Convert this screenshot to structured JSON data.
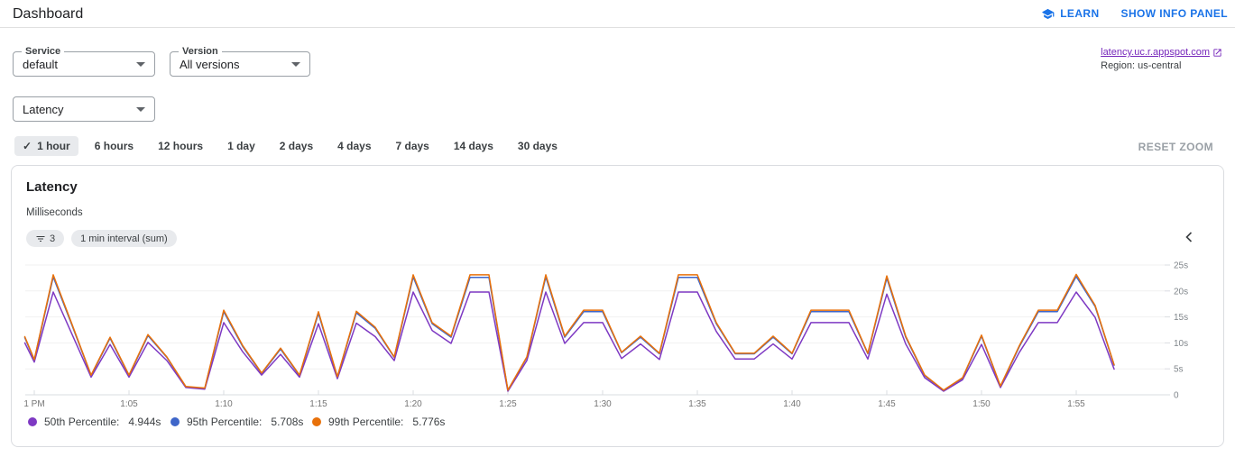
{
  "header": {
    "title": "Dashboard",
    "learn_label": "LEARN",
    "show_info_panel_label": "SHOW INFO PANEL"
  },
  "filters": {
    "service_label": "Service",
    "service_value": "default",
    "version_label": "Version",
    "version_value": "All versions",
    "metric_value": "Latency",
    "app_link_text": "latency.uc.r.appspot.com",
    "region_text": "Region: us-central"
  },
  "time_bar": {
    "options": [
      "1 hour",
      "6 hours",
      "12 hours",
      "1 day",
      "2 days",
      "4 days",
      "7 days",
      "14 days",
      "30 days"
    ],
    "selected": "1 hour",
    "check_glyph": "✓",
    "reset_zoom_label": "RESET ZOOM"
  },
  "chart_card": {
    "title": "Latency",
    "unit": "Milliseconds",
    "filter_chip_count": "3",
    "interval_chip_label": "1 min interval (sum)"
  },
  "chart_data": {
    "type": "line",
    "title": "Latency",
    "ylabel": "Milliseconds",
    "ylim": [
      0,
      25
    ],
    "grid": "horizontal",
    "legend_position": "bottom",
    "y_ticks": [
      0,
      5,
      10,
      15,
      20,
      25
    ],
    "y_tick_labels": [
      "0",
      "5s",
      "10s",
      "15s",
      "20s",
      "25s"
    ],
    "x_tick_minutes": [
      0,
      5,
      10,
      15,
      20,
      25,
      30,
      35,
      40,
      45,
      50,
      55
    ],
    "x_tick_labels": [
      "1 PM",
      "1:05",
      "1:10",
      "1:15",
      "1:20",
      "1:25",
      "1:30",
      "1:35",
      "1:40",
      "1:45",
      "1:50",
      "1:55"
    ],
    "x_minutes": [
      -0.5,
      0,
      1,
      2,
      3,
      4,
      5,
      6,
      7,
      8,
      9,
      10,
      11,
      12,
      13,
      14,
      15,
      16,
      17,
      18,
      19,
      20,
      21,
      22,
      23,
      24,
      25,
      26,
      27,
      28,
      29,
      30,
      31,
      32,
      33,
      34,
      35,
      36,
      37,
      38,
      39,
      40,
      41,
      42,
      43,
      44,
      45,
      46,
      47,
      48,
      49,
      50,
      51,
      52,
      53,
      54,
      55,
      56,
      57
    ],
    "series": [
      {
        "name": "50th Percentile",
        "latest": "4.944s",
        "color": "#7e39c3",
        "values": [
          10.0,
          6.3,
          19.8,
          11.6,
          3.4,
          9.7,
          3.4,
          10.1,
          6.6,
          1.4,
          1.1,
          13.9,
          8.3,
          3.8,
          7.8,
          3.4,
          13.7,
          3.1,
          13.8,
          11.2,
          6.6,
          19.8,
          12.4,
          9.9,
          19.8,
          19.8,
          0.7,
          6.6,
          19.8,
          9.9,
          13.9,
          13.9,
          7.0,
          9.8,
          6.8,
          19.8,
          19.8,
          12.2,
          6.9,
          6.9,
          9.8,
          6.9,
          13.9,
          13.9,
          13.9,
          6.9,
          19.4,
          9.8,
          3.3,
          0.7,
          2.9,
          9.7,
          1.4,
          8.2,
          13.9,
          13.9,
          19.8,
          14.9,
          4.944
        ]
      },
      {
        "name": "95th Percentile",
        "latest": "5.708s",
        "color": "#3f66c9",
        "values": [
          11.0,
          6.7,
          22.7,
          13.3,
          3.7,
          10.9,
          3.7,
          11.4,
          7.2,
          1.5,
          1.2,
          16.0,
          9.3,
          4.1,
          8.8,
          3.7,
          15.7,
          3.4,
          15.8,
          12.8,
          7.2,
          22.7,
          13.7,
          11.1,
          22.6,
          22.6,
          0.85,
          7.2,
          22.7,
          11.1,
          16.0,
          16.0,
          8.1,
          11.1,
          7.9,
          22.6,
          22.6,
          13.7,
          7.9,
          7.9,
          11.1,
          7.9,
          16.0,
          16.0,
          16.0,
          7.9,
          22.5,
          11.1,
          3.7,
          0.85,
          3.2,
          11.3,
          1.6,
          9.3,
          16.0,
          16.0,
          22.8,
          17.0,
          5.708
        ]
      },
      {
        "name": "99th Percentile",
        "latest": "5.776s",
        "color": "#e8710a",
        "values": [
          11.2,
          6.8,
          23.1,
          13.5,
          3.8,
          11.1,
          3.8,
          11.6,
          7.3,
          1.6,
          1.3,
          16.3,
          9.5,
          4.2,
          9.0,
          3.8,
          16.0,
          3.5,
          16.1,
          13.0,
          7.3,
          23.1,
          13.9,
          11.3,
          23.1,
          23.1,
          0.9,
          7.3,
          23.1,
          11.3,
          16.3,
          16.3,
          8.2,
          11.3,
          8.0,
          23.1,
          23.1,
          13.9,
          8.0,
          8.0,
          11.3,
          8.0,
          16.3,
          16.3,
          16.3,
          8.0,
          22.9,
          11.3,
          3.8,
          0.9,
          3.3,
          11.5,
          1.7,
          9.5,
          16.3,
          16.3,
          23.2,
          17.2,
          5.776
        ]
      }
    ]
  }
}
